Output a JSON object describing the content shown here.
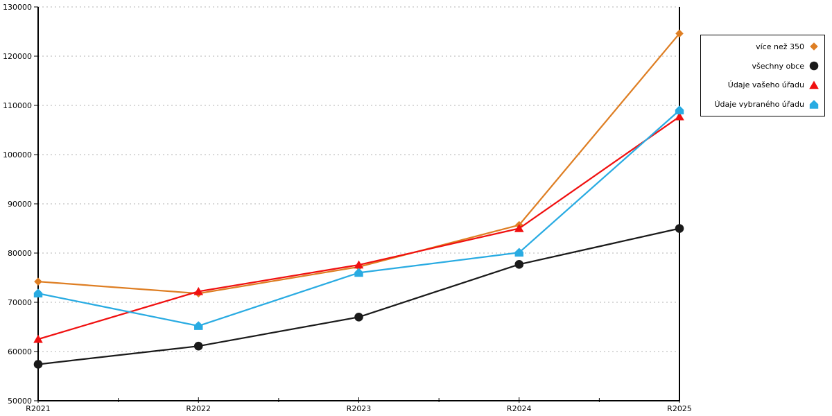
{
  "chart_data": {
    "type": "line",
    "title": "",
    "xlabel": "",
    "ylabel": "",
    "x_categories": [
      "R2021",
      "R2022",
      "R2023",
      "R2024",
      "R2025"
    ],
    "y_tick_labels": [
      "50000",
      "60000",
      "70000",
      "80000",
      "90000",
      "100000",
      "110000",
      "120000",
      "130000"
    ],
    "ylim": [
      50000,
      130000
    ],
    "y_tick_step": 10000,
    "grid": "horizontal-dotted",
    "x_minor_ticks": "midpoints",
    "legend_position": "right-outside",
    "series": [
      {
        "name": "více než 350",
        "color": "#DE7E23",
        "marker": "diamond",
        "values": [
          74200,
          71800,
          77200,
          85700,
          124600
        ]
      },
      {
        "name": "všechny obce",
        "color": "#1A1A1A",
        "marker": "circle",
        "values": [
          57400,
          61100,
          67000,
          77700,
          85000
        ]
      },
      {
        "name": "Údaje vašeho úřadu",
        "color": "#F01010",
        "marker": "triangle",
        "values": [
          62500,
          72200,
          77600,
          85000,
          107700
        ]
      },
      {
        "name": "Údaje vybraného úřadu",
        "color": "#29ABE2",
        "marker": "pentagon",
        "values": [
          71800,
          65200,
          76000,
          80100,
          109000
        ]
      }
    ],
    "colors": {
      "axis": "#000000",
      "grid": "#B3B3B3",
      "text": "#000000",
      "background": "#FFFFFF"
    }
  }
}
